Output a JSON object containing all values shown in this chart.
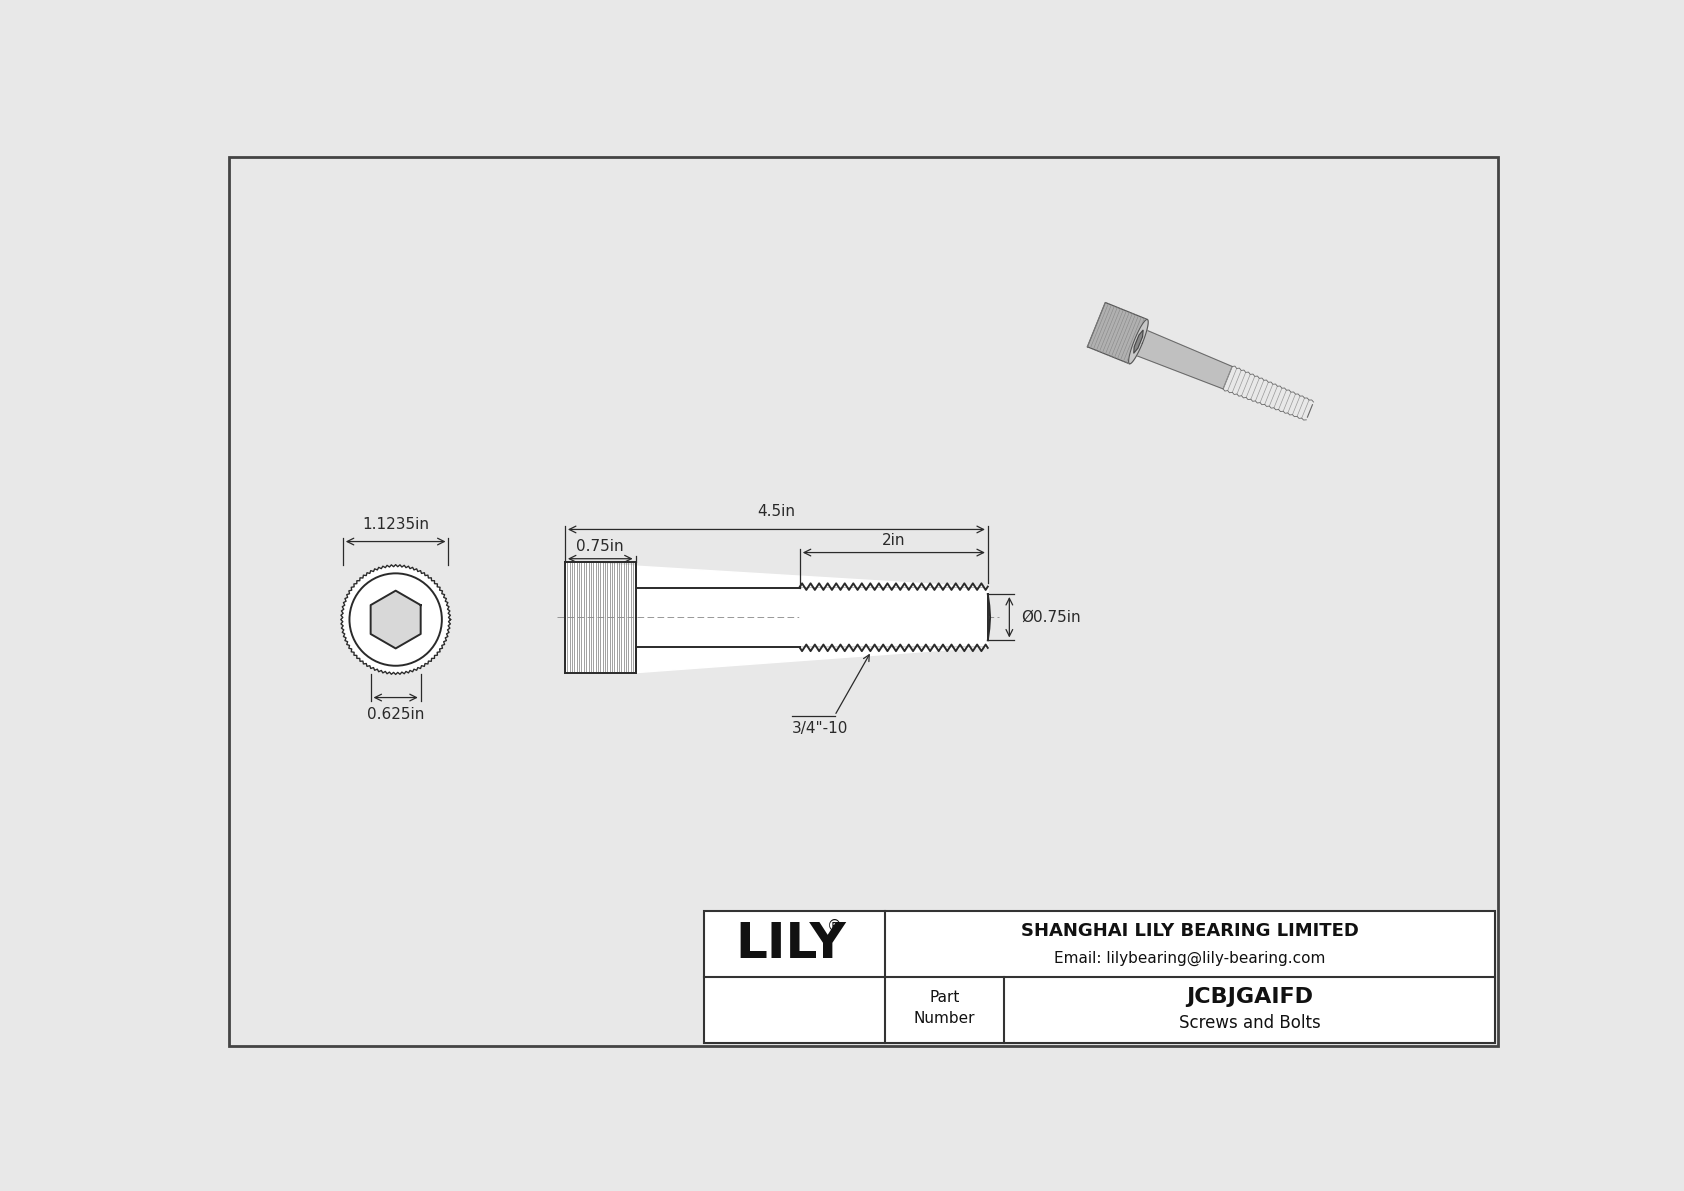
{
  "bg_color": "#e8e8e8",
  "line_color": "#2a2a2a",
  "dim_color": "#2a2a2a",
  "part_number": "JCBJGAIFD",
  "category": "Screws and Bolts",
  "company": "SHANGHAI LILY BEARING LIMITED",
  "email": "Email: lilybearing@lily-bearing.com",
  "logo": "LILY",
  "dim_total_length": "4.5in",
  "dim_head_length": "0.75in",
  "dim_thread_length": "2in",
  "dim_diameter": "Ø0.75in",
  "dim_head_diameter": "1.1235in",
  "dim_hex_socket": "0.625in",
  "thread_label": "3/4\"-10"
}
